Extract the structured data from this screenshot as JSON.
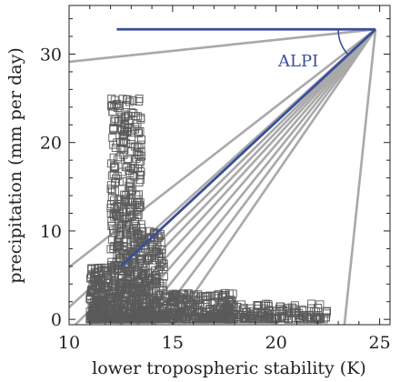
{
  "chart_data": {
    "type": "scatter",
    "xlabel": "lower tropospheric stability (K)",
    "ylabel": "precipitation (mm per day)",
    "xlim": [
      10,
      25.5
    ],
    "ylim": [
      -0.6,
      35.5
    ],
    "xticks": [
      "10",
      "15",
      "20",
      "25"
    ],
    "yticks": [
      "0",
      "10",
      "20",
      "30"
    ],
    "xtick_values": [
      10,
      15,
      20,
      25
    ],
    "ytick_values": [
      0,
      10,
      20,
      30
    ],
    "grid": false,
    "annotation": {
      "text": "ALPI",
      "color": "#3a4f9a"
    },
    "pivot": [
      24.8,
      32.8
    ],
    "marker_color": "#5a5a5a",
    "ray_color": "#a9a9a9",
    "highlight_color": "#3a4f9a",
    "rays": [
      {
        "x0": 9.5,
        "y0": 29.0
      },
      {
        "x0": 9.5,
        "y0": 5.0
      },
      {
        "x0": 9.5,
        "y0": 0.3
      },
      {
        "x0": 10.3,
        "y0": -0.6
      },
      {
        "x0": 11.0,
        "y0": -0.6
      },
      {
        "x0": 11.7,
        "y0": -0.6
      },
      {
        "x0": 12.5,
        "y0": -0.6
      },
      {
        "x0": 13.3,
        "y0": -0.6
      },
      {
        "x0": 14.1,
        "y0": -0.6
      },
      {
        "x0": 15.0,
        "y0": -0.6
      },
      {
        "x0": 23.3,
        "y0": -0.6
      }
    ],
    "highlight_lines": [
      {
        "x0": 12.3,
        "y0": 32.8,
        "x1": 24.8,
        "y1": 32.8
      },
      {
        "x0": 12.5,
        "y0": 6.0,
        "x1": 24.8,
        "y1": 32.8
      }
    ],
    "scatter_clusters": [
      {
        "x_range": [
          11.0,
          12.0
        ],
        "y_range": [
          0.0,
          6.0
        ],
        "count": 220
      },
      {
        "x_range": [
          12.0,
          13.5
        ],
        "y_range": [
          0.0,
          25.0
        ],
        "count": 600
      },
      {
        "x_range": [
          13.5,
          14.6
        ],
        "y_range": [
          0.0,
          10.0
        ],
        "count": 250
      },
      {
        "x_range": [
          14.6,
          18.0
        ],
        "y_range": [
          0.0,
          3.0
        ],
        "count": 300
      },
      {
        "x_range": [
          18.0,
          22.5
        ],
        "y_range": [
          0.0,
          1.8
        ],
        "count": 160
      }
    ]
  }
}
